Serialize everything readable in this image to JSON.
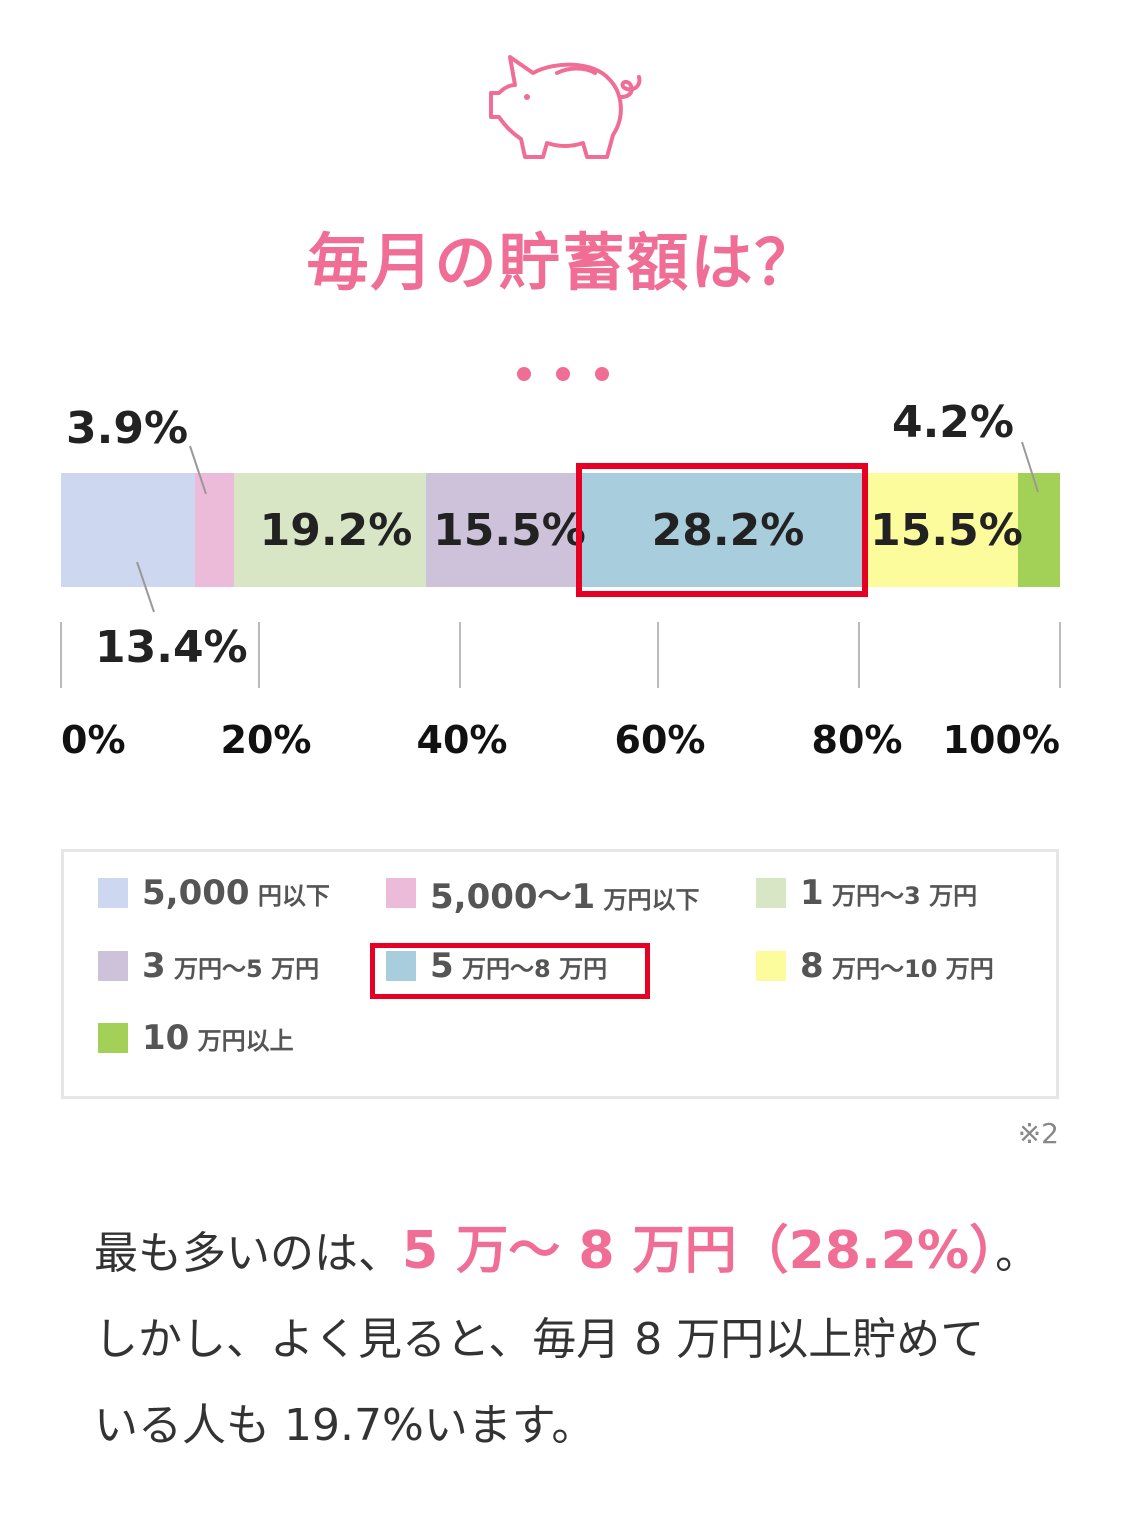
{
  "title": "毎月の貯蓄額は？",
  "pig_icon": "piggy-bank-icon",
  "accent_color": "#f06e95",
  "highlight_color": "#e60023",
  "chart_data": {
    "type": "bar",
    "orientation": "horizontal-stacked-100",
    "series": [
      {
        "label": "5,000円以下",
        "value": 13.4,
        "display": "13.4%",
        "color": "#cdd7f0"
      },
      {
        "label": "5,000〜1万円以下",
        "value": 3.9,
        "display": "3.9%",
        "color": "#edbbda"
      },
      {
        "label": "1万円〜3万円",
        "value": 19.2,
        "display": "19.2%",
        "color": "#d9e6c5"
      },
      {
        "label": "3万円〜5万円",
        "value": 15.5,
        "display": "15.5%",
        "color": "#cdc2da"
      },
      {
        "label": "5万円〜8万円",
        "value": 28.2,
        "display": "28.2%",
        "color": "#a8cddc",
        "highlight": true
      },
      {
        "label": "8万円〜10万円",
        "value": 15.5,
        "display": "15.5%",
        "color": "#fcfc9c"
      },
      {
        "label": "10万円以上",
        "value": 4.2,
        "display": "4.2%",
        "color": "#a3d157"
      }
    ],
    "ticks": [
      "0%",
      "20%",
      "40%",
      "60%",
      "80%",
      "100%"
    ],
    "xlim": [
      0,
      100
    ]
  },
  "legend": [
    {
      "num": "5,000",
      "unit": "円以下"
    },
    {
      "num": "5,000〜1",
      "unit": "万円以下"
    },
    {
      "num": "1",
      "unit": "万円〜3",
      "unit2": "万円"
    },
    {
      "num": "3",
      "unit": "万円〜5",
      "unit2": "万円"
    },
    {
      "num": "5",
      "unit": "万円〜8",
      "unit2": "万円"
    },
    {
      "num": "8",
      "unit": "万円〜10",
      "unit2": "万円"
    },
    {
      "num": "10",
      "unit": "万円以上"
    }
  ],
  "note": "※2",
  "summary": {
    "before": "最も多いのは、",
    "accent": "5 万〜 8 万円（28.2%）",
    "after": "。",
    "line2": "しかし、よく見ると、毎月 8 万円以上貯めて",
    "line3": "いる人も 19.7%います。"
  }
}
